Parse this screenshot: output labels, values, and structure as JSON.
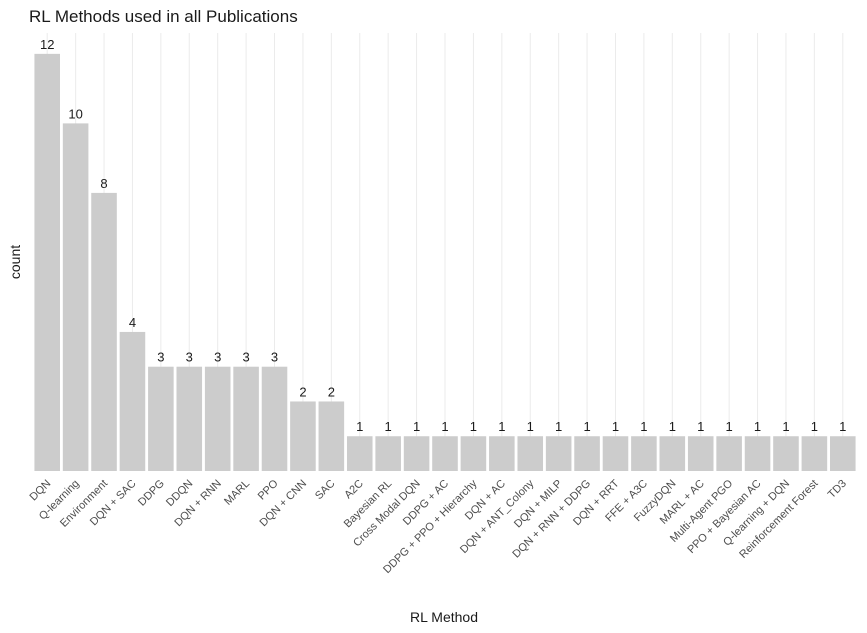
{
  "chart_data": {
    "type": "bar",
    "title": "RL Methods used in all Publications",
    "xlabel": "RL Method",
    "ylabel": "count",
    "categories": [
      "DQN",
      "Q-learning",
      "Environment",
      "DQN + SAC",
      "DDPG",
      "DDQN",
      "DQN + RNN",
      "MARL",
      "PPO",
      "DQN + CNN",
      "SAC",
      "A2C",
      "Bayesian RL",
      "Cross Modal DQN",
      "DDPG + AC",
      "DDPG + PPO + Hierarchy",
      "DQN + AC",
      "DQN + ANT_Colony",
      "DQN + MILP",
      "DQN + RNN + DDPG",
      "DQN + RRT",
      "FFE + A3C",
      "FuzzyDQN",
      "MARL + AC",
      "Multi-Agent PGO",
      "PPO + Bayesian AC",
      "Q-learning + DQN",
      "Reinforcement Forest",
      "TD3"
    ],
    "values": [
      12,
      10,
      8,
      4,
      3,
      3,
      3,
      3,
      3,
      2,
      2,
      1,
      1,
      1,
      1,
      1,
      1,
      1,
      1,
      1,
      1,
      1,
      1,
      1,
      1,
      1,
      1,
      1,
      1
    ],
    "ylim": [
      0,
      12.6
    ],
    "bar_color": "#cccccc",
    "grid": "vertical",
    "y_axis_ticks": false,
    "data_labels": true
  }
}
